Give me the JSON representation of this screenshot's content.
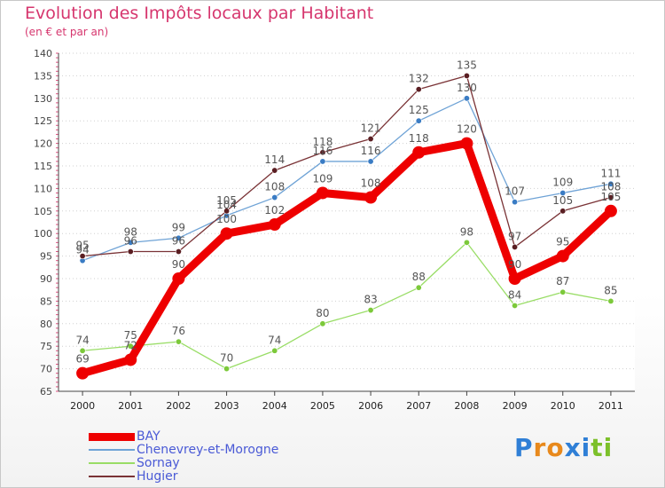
{
  "title": "Evolution des Impôts locaux par Habitant",
  "subtitle": "(en € et par an)",
  "brand": {
    "letters": [
      "P",
      "r",
      "o",
      "x",
      "i",
      "t",
      "i"
    ],
    "colors": [
      "#2f7fd6",
      "#e8891c",
      "#e8891c",
      "#2f7fd6",
      "#2f7fd6",
      "#7cc02a",
      "#7cc02a"
    ]
  },
  "chart_data": {
    "type": "line",
    "title": "Evolution des Impôts locaux par Habitant",
    "subtitle": "(en € et par an)",
    "xlabel": "",
    "ylabel": "",
    "x": [
      "2000",
      "2001",
      "2002",
      "2003",
      "2004",
      "2005",
      "2006",
      "2007",
      "2008",
      "2009",
      "2010",
      "2011"
    ],
    "ylim": [
      65,
      140
    ],
    "yticks": [
      "65",
      "70",
      "75",
      "80",
      "85",
      "90",
      "95",
      "100",
      "105",
      "110",
      "115",
      "120",
      "125",
      "130",
      "135",
      "140"
    ],
    "grid": "horizontal dotted",
    "legend_position": "bottom-left",
    "series": [
      {
        "name": "BAY",
        "color": "#ee0000",
        "values": [
          69,
          72,
          90,
          100,
          102,
          109,
          108,
          118,
          120,
          90,
          95,
          105
        ]
      },
      {
        "name": "Chenevrey-et-Morogne",
        "color": "#6fa3d6",
        "values": [
          94,
          98,
          99,
          104,
          108,
          116,
          116,
          125,
          130,
          107,
          109,
          111
        ]
      },
      {
        "name": "Sornay",
        "color": "#99dd66",
        "values": [
          74,
          75,
          76,
          70,
          74,
          80,
          83,
          88,
          98,
          84,
          87,
          85
        ]
      },
      {
        "name": "Hugier",
        "color": "#7a3336",
        "values": [
          95,
          96,
          96,
          105,
          114,
          118,
          121,
          132,
          135,
          97,
          105,
          108
        ]
      }
    ]
  }
}
